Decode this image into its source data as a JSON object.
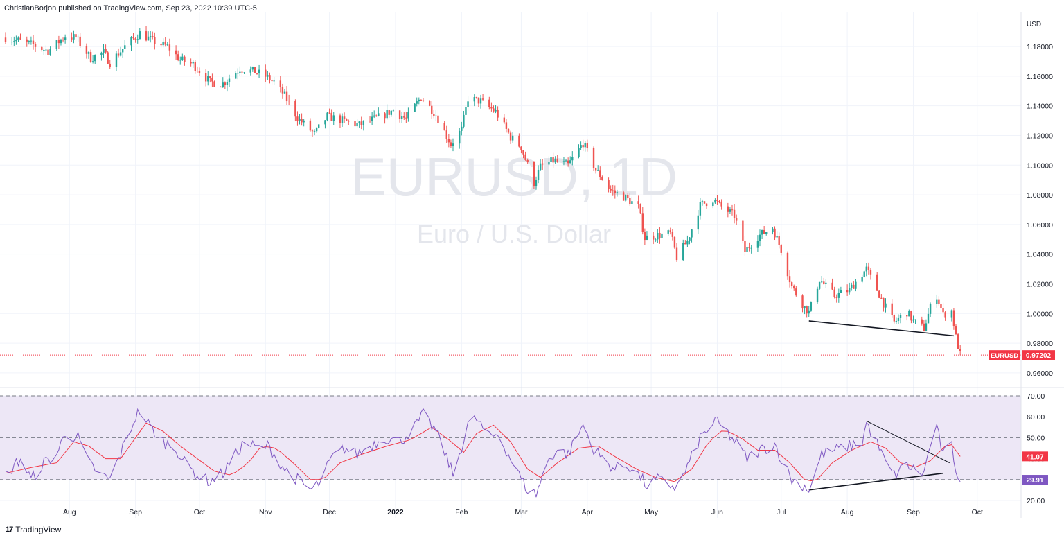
{
  "header": {
    "published_text": "ChristianBorjon published on TradingView.com, Sep 23, 2022 10:39 UTC-5"
  },
  "footer": {
    "brand": "TradingView",
    "logo_glyph": "17"
  },
  "colors": {
    "up": "#26a69a",
    "down": "#ef5350",
    "rsi_line": "#7e57c2",
    "rsi_ma": "#f23645",
    "rsi_band": "#ede7f6",
    "price_tag": "#f23645",
    "rsi_tag": "#7e57c2",
    "grid": "#f0f3fa",
    "axis_text": "#131722"
  },
  "chart_data": [
    {
      "type": "candlestick",
      "symbol": "EURUSD",
      "interval": "1D",
      "watermark": "EURUSD, 1D",
      "description": "Euro / U.S. Dollar",
      "currency": "USD",
      "ylim": [
        0.952,
        1.202
      ],
      "price_ticks": [
        1.18,
        1.16,
        1.14,
        1.12,
        1.1,
        1.08,
        1.06,
        1.04,
        1.02,
        1.0,
        0.98,
        0.96
      ],
      "price_tick_labels": [
        "1.18000",
        "1.16000",
        "1.14000",
        "1.12000",
        "1.10000",
        "1.08000",
        "1.06000",
        "1.04000",
        "1.02000",
        "1.00000",
        "0.98000",
        "0.96000"
      ],
      "last_price": 0.97202,
      "last_price_label": "0.97202",
      "last_price_symbol": "EURUSD",
      "x_start": "2021-07-02",
      "x_end": "2022-10-04",
      "x_tick_labels": [
        {
          "date": "2021-08-01",
          "label": "Aug"
        },
        {
          "date": "2021-09-01",
          "label": "Sep"
        },
        {
          "date": "2021-10-01",
          "label": "Oct"
        },
        {
          "date": "2021-11-01",
          "label": "Nov"
        },
        {
          "date": "2021-12-01",
          "label": "Dec"
        },
        {
          "date": "2022-01-01",
          "label": "2022"
        },
        {
          "date": "2022-02-01",
          "label": "Feb"
        },
        {
          "date": "2022-03-01",
          "label": "Mar"
        },
        {
          "date": "2022-04-01",
          "label": "Apr"
        },
        {
          "date": "2022-05-01",
          "label": "May"
        },
        {
          "date": "2022-06-01",
          "label": "Jun"
        },
        {
          "date": "2022-07-01",
          "label": "Jul"
        },
        {
          "date": "2022-08-01",
          "label": "Aug"
        },
        {
          "date": "2022-09-01",
          "label": "Sep"
        },
        {
          "date": "2022-10-01",
          "label": "Oct"
        }
      ],
      "close_path": [
        [
          "2021-07-02",
          1.186
        ],
        [
          "2021-07-08",
          1.184
        ],
        [
          "2021-07-15",
          1.181
        ],
        [
          "2021-07-22",
          1.177
        ],
        [
          "2021-07-30",
          1.187
        ],
        [
          "2021-08-04",
          1.186
        ],
        [
          "2021-08-11",
          1.172
        ],
        [
          "2021-08-17",
          1.176
        ],
        [
          "2021-08-20",
          1.169
        ],
        [
          "2021-08-27",
          1.18
        ],
        [
          "2021-09-03",
          1.189
        ],
        [
          "2021-09-10",
          1.183
        ],
        [
          "2021-09-16",
          1.18
        ],
        [
          "2021-09-22",
          1.171
        ],
        [
          "2021-09-28",
          1.168
        ],
        [
          "2021-10-06",
          1.156
        ],
        [
          "2021-10-12",
          1.155
        ],
        [
          "2021-10-20",
          1.165
        ],
        [
          "2021-10-27",
          1.163
        ],
        [
          "2021-11-01",
          1.16
        ],
        [
          "2021-11-05",
          1.156
        ],
        [
          "2021-11-10",
          1.147
        ],
        [
          "2021-11-16",
          1.132
        ],
        [
          "2021-11-24",
          1.121
        ],
        [
          "2021-11-30",
          1.133
        ],
        [
          "2021-12-07",
          1.13
        ],
        [
          "2021-12-15",
          1.127
        ],
        [
          "2021-12-22",
          1.131
        ],
        [
          "2021-12-31",
          1.137
        ],
        [
          "2022-01-06",
          1.131
        ],
        [
          "2022-01-13",
          1.146
        ],
        [
          "2022-01-20",
          1.134
        ],
        [
          "2022-01-27",
          1.114
        ],
        [
          "2022-02-01",
          1.124
        ],
        [
          "2022-02-04",
          1.145
        ],
        [
          "2022-02-10",
          1.143
        ],
        [
          "2022-02-17",
          1.136
        ],
        [
          "2022-02-24",
          1.119
        ],
        [
          "2022-03-01",
          1.112
        ],
        [
          "2022-03-07",
          1.088
        ],
        [
          "2022-03-10",
          1.099
        ],
        [
          "2022-03-16",
          1.103
        ],
        [
          "2022-03-23",
          1.1
        ],
        [
          "2022-03-30",
          1.115
        ],
        [
          "2022-04-05",
          1.097
        ],
        [
          "2022-04-12",
          1.083
        ],
        [
          "2022-04-19",
          1.078
        ],
        [
          "2022-04-25",
          1.072
        ],
        [
          "2022-04-28",
          1.051
        ],
        [
          "2022-05-05",
          1.053
        ],
        [
          "2022-05-10",
          1.054
        ],
        [
          "2022-05-13",
          1.038
        ],
        [
          "2022-05-18",
          1.049
        ],
        [
          "2022-05-24",
          1.073
        ],
        [
          "2022-05-30",
          1.077
        ],
        [
          "2022-06-03",
          1.072
        ],
        [
          "2022-06-09",
          1.066
        ],
        [
          "2022-06-14",
          1.042
        ],
        [
          "2022-06-20",
          1.052
        ],
        [
          "2022-06-27",
          1.058
        ],
        [
          "2022-07-01",
          1.043
        ],
        [
          "2022-07-06",
          1.018
        ],
        [
          "2022-07-12",
          1.004
        ],
        [
          "2022-07-14",
          1.001
        ],
        [
          "2022-07-19",
          1.023
        ],
        [
          "2022-07-26",
          1.012
        ],
        [
          "2022-08-02",
          1.016
        ],
        [
          "2022-08-10",
          1.03
        ],
        [
          "2022-08-15",
          1.016
        ],
        [
          "2022-08-19",
          1.004
        ],
        [
          "2022-08-23",
          0.994
        ],
        [
          "2022-08-29",
          1.001
        ],
        [
          "2022-09-01",
          0.995
        ],
        [
          "2022-09-06",
          0.99
        ],
        [
          "2022-09-09",
          1.004
        ],
        [
          "2022-09-12",
          1.012
        ],
        [
          "2022-09-15",
          0.999
        ],
        [
          "2022-09-19",
          1.002
        ],
        [
          "2022-09-21",
          0.984
        ],
        [
          "2022-09-23",
          0.972
        ]
      ],
      "trendline": {
        "from": [
          "2022-07-14",
          0.995
        ],
        "to": [
          "2022-09-20",
          0.985
        ]
      }
    },
    {
      "type": "line",
      "indicator": "RSI",
      "ylim": [
        17,
        72
      ],
      "y_ticks": [
        70,
        60,
        50,
        40,
        30,
        20
      ],
      "y_tick_labels": [
        "70.00",
        "60.00",
        "50.00",
        "40.00",
        "30.00",
        "20.00"
      ],
      "bands": [
        30,
        50,
        70
      ],
      "rsi_value_label": "29.91",
      "ma_value_label": "41.07",
      "rsi_path": [
        [
          "2021-07-02",
          32
        ],
        [
          "2021-07-09",
          40
        ],
        [
          "2021-07-14",
          30
        ],
        [
          "2021-07-20",
          38
        ],
        [
          "2021-07-26",
          42
        ],
        [
          "2021-07-30",
          52
        ],
        [
          "2021-08-05",
          50
        ],
        [
          "2021-08-10",
          38
        ],
        [
          "2021-08-16",
          32
        ],
        [
          "2021-08-20",
          30
        ],
        [
          "2021-08-26",
          45
        ],
        [
          "2021-09-01",
          60
        ],
        [
          "2021-09-03",
          63
        ],
        [
          "2021-09-08",
          55
        ],
        [
          "2021-09-14",
          48
        ],
        [
          "2021-09-20",
          45
        ],
        [
          "2021-09-24",
          38
        ],
        [
          "2021-09-30",
          32
        ],
        [
          "2021-10-06",
          29
        ],
        [
          "2021-10-12",
          33
        ],
        [
          "2021-10-18",
          42
        ],
        [
          "2021-10-22",
          48
        ],
        [
          "2021-10-28",
          45
        ],
        [
          "2021-11-02",
          46
        ],
        [
          "2021-11-05",
          42
        ],
        [
          "2021-11-10",
          35
        ],
        [
          "2021-11-16",
          30
        ],
        [
          "2021-11-22",
          25
        ],
        [
          "2021-11-26",
          28
        ],
        [
          "2021-12-02",
          40
        ],
        [
          "2021-12-08",
          45
        ],
        [
          "2021-12-14",
          42
        ],
        [
          "2021-12-20",
          46
        ],
        [
          "2021-12-27",
          50
        ],
        [
          "2022-01-03",
          48
        ],
        [
          "2022-01-10",
          55
        ],
        [
          "2022-01-14",
          61
        ],
        [
          "2022-01-20",
          53
        ],
        [
          "2022-01-26",
          38
        ],
        [
          "2022-01-28",
          32
        ],
        [
          "2022-02-04",
          56
        ],
        [
          "2022-02-08",
          59
        ],
        [
          "2022-02-14",
          50
        ],
        [
          "2022-02-18",
          52
        ],
        [
          "2022-02-24",
          40
        ],
        [
          "2022-03-01",
          30
        ],
        [
          "2022-03-04",
          25
        ],
        [
          "2022-03-08",
          23
        ],
        [
          "2022-03-14",
          40
        ],
        [
          "2022-03-18",
          44
        ],
        [
          "2022-03-23",
          42
        ],
        [
          "2022-03-30",
          56
        ],
        [
          "2022-04-04",
          45
        ],
        [
          "2022-04-08",
          40
        ],
        [
          "2022-04-14",
          35
        ],
        [
          "2022-04-20",
          37
        ],
        [
          "2022-04-26",
          31
        ],
        [
          "2022-04-29",
          27
        ],
        [
          "2022-05-04",
          30
        ],
        [
          "2022-05-09",
          28
        ],
        [
          "2022-05-13",
          26
        ],
        [
          "2022-05-18",
          36
        ],
        [
          "2022-05-24",
          50
        ],
        [
          "2022-05-31",
          58
        ],
        [
          "2022-06-06",
          52
        ],
        [
          "2022-06-10",
          47
        ],
        [
          "2022-06-15",
          40
        ],
        [
          "2022-06-21",
          44
        ],
        [
          "2022-06-28",
          47
        ],
        [
          "2022-07-01",
          40
        ],
        [
          "2022-07-06",
          30
        ],
        [
          "2022-07-12",
          27
        ],
        [
          "2022-07-14",
          25
        ],
        [
          "2022-07-20",
          42
        ],
        [
          "2022-07-26",
          44
        ],
        [
          "2022-08-02",
          46
        ],
        [
          "2022-08-08",
          48
        ],
        [
          "2022-08-10",
          57
        ],
        [
          "2022-08-15",
          47
        ],
        [
          "2022-08-19",
          38
        ],
        [
          "2022-08-23",
          32
        ],
        [
          "2022-08-29",
          37
        ],
        [
          "2022-09-01",
          35
        ],
        [
          "2022-09-06",
          33
        ],
        [
          "2022-09-09",
          47
        ],
        [
          "2022-09-12",
          54
        ],
        [
          "2022-09-15",
          42
        ],
        [
          "2022-09-19",
          46
        ],
        [
          "2022-09-21",
          35
        ],
        [
          "2022-09-23",
          29.91
        ]
      ],
      "ma_path": [
        [
          "2021-07-02",
          33
        ],
        [
          "2021-07-15",
          36
        ],
        [
          "2021-07-26",
          38
        ],
        [
          "2021-08-03",
          48
        ],
        [
          "2021-08-10",
          46
        ],
        [
          "2021-08-18",
          40
        ],
        [
          "2021-08-25",
          40
        ],
        [
          "2021-09-01",
          50
        ],
        [
          "2021-09-06",
          57
        ],
        [
          "2021-09-14",
          53
        ],
        [
          "2021-09-22",
          46
        ],
        [
          "2021-09-30",
          40
        ],
        [
          "2021-10-08",
          34
        ],
        [
          "2021-10-16",
          32
        ],
        [
          "2021-10-24",
          38
        ],
        [
          "2021-10-30",
          46
        ],
        [
          "2021-11-06",
          45
        ],
        [
          "2021-11-14",
          38
        ],
        [
          "2021-11-22",
          30
        ],
        [
          "2021-11-28",
          30
        ],
        [
          "2021-12-06",
          38
        ],
        [
          "2021-12-16",
          42
        ],
        [
          "2021-12-28",
          46
        ],
        [
          "2022-01-08",
          49
        ],
        [
          "2022-01-18",
          55
        ],
        [
          "2022-01-26",
          49
        ],
        [
          "2022-02-02",
          43
        ],
        [
          "2022-02-08",
          52
        ],
        [
          "2022-02-16",
          56
        ],
        [
          "2022-02-24",
          48
        ],
        [
          "2022-03-04",
          35
        ],
        [
          "2022-03-10",
          31
        ],
        [
          "2022-03-18",
          38
        ],
        [
          "2022-03-28",
          45
        ],
        [
          "2022-04-06",
          46
        ],
        [
          "2022-04-14",
          41
        ],
        [
          "2022-04-24",
          35
        ],
        [
          "2022-05-03",
          31
        ],
        [
          "2022-05-12",
          29
        ],
        [
          "2022-05-20",
          35
        ],
        [
          "2022-05-28",
          48
        ],
        [
          "2022-06-04",
          54
        ],
        [
          "2022-06-12",
          50
        ],
        [
          "2022-06-20",
          44
        ],
        [
          "2022-06-28",
          44
        ],
        [
          "2022-07-05",
          38
        ],
        [
          "2022-07-12",
          30
        ],
        [
          "2022-07-17",
          29
        ],
        [
          "2022-07-25",
          38
        ],
        [
          "2022-08-03",
          44
        ],
        [
          "2022-08-12",
          48
        ],
        [
          "2022-08-19",
          45
        ],
        [
          "2022-08-26",
          38
        ],
        [
          "2022-09-02",
          36
        ],
        [
          "2022-09-09",
          39
        ],
        [
          "2022-09-14",
          44
        ],
        [
          "2022-09-18",
          48
        ],
        [
          "2022-09-23",
          41.07
        ]
      ],
      "trendline_upper": {
        "from": [
          "2022-08-10",
          58
        ],
        "to": [
          "2022-09-18",
          38
        ]
      },
      "trendline_lower": {
        "from": [
          "2022-07-14",
          25
        ],
        "to": [
          "2022-09-15",
          33
        ]
      }
    }
  ]
}
